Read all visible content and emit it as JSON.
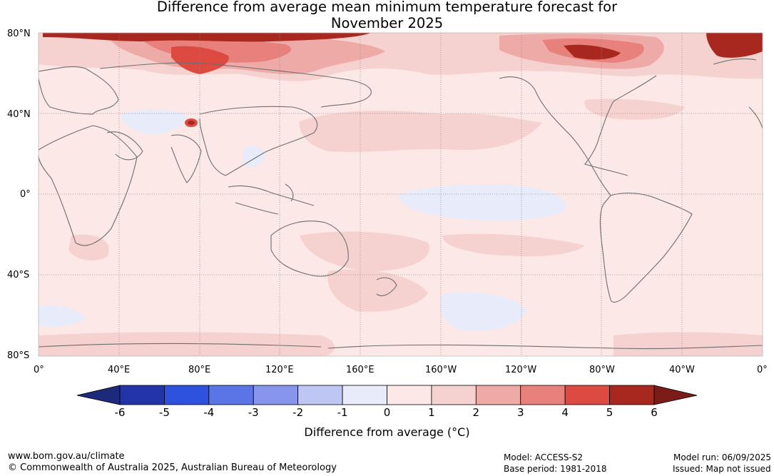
{
  "header": {
    "title_line1": "Difference from average mean minimum temperature forecast for",
    "title_line2": "November 2025"
  },
  "map": {
    "lat_labels": [
      "80°N",
      "40°N",
      "0°",
      "40°S",
      "80°S"
    ],
    "lon_labels": [
      "0°",
      "40°E",
      "80°E",
      "120°E",
      "160°E",
      "160°W",
      "120°W",
      "80°W",
      "40°W",
      "0°"
    ],
    "ocean_color": "#fce8e6",
    "coast_color": "#6e6e6e",
    "grid_color": "#8a8a8a"
  },
  "colorbar": {
    "ticks": [
      "-6",
      "-5",
      "-4",
      "-3",
      "-2",
      "-1",
      "0",
      "1",
      "2",
      "3",
      "4",
      "5",
      "6"
    ],
    "colors": [
      "#2234a8",
      "#2f52de",
      "#5b74e6",
      "#8796ec",
      "#bec6f4",
      "#e8ebfa",
      "#fce8e6",
      "#f5d1cf",
      "#eeaaa7",
      "#e8807b",
      "#dc4a41",
      "#a82820"
    ],
    "low_extend_color": "#1b2a7a",
    "high_extend_color": "#7a1d18",
    "title": "Difference from average (°C)"
  },
  "footer": {
    "website": "www.bom.gov.au/climate",
    "copyright": "© Commonwealth of Australia 2025, Australian Bureau of Meteorology",
    "model": "Model: ACCESS-S2",
    "base_period": "Base period: 1981-2018",
    "model_run": "Model run: 06/09/2025",
    "issued": "Issued: Map not issued"
  }
}
